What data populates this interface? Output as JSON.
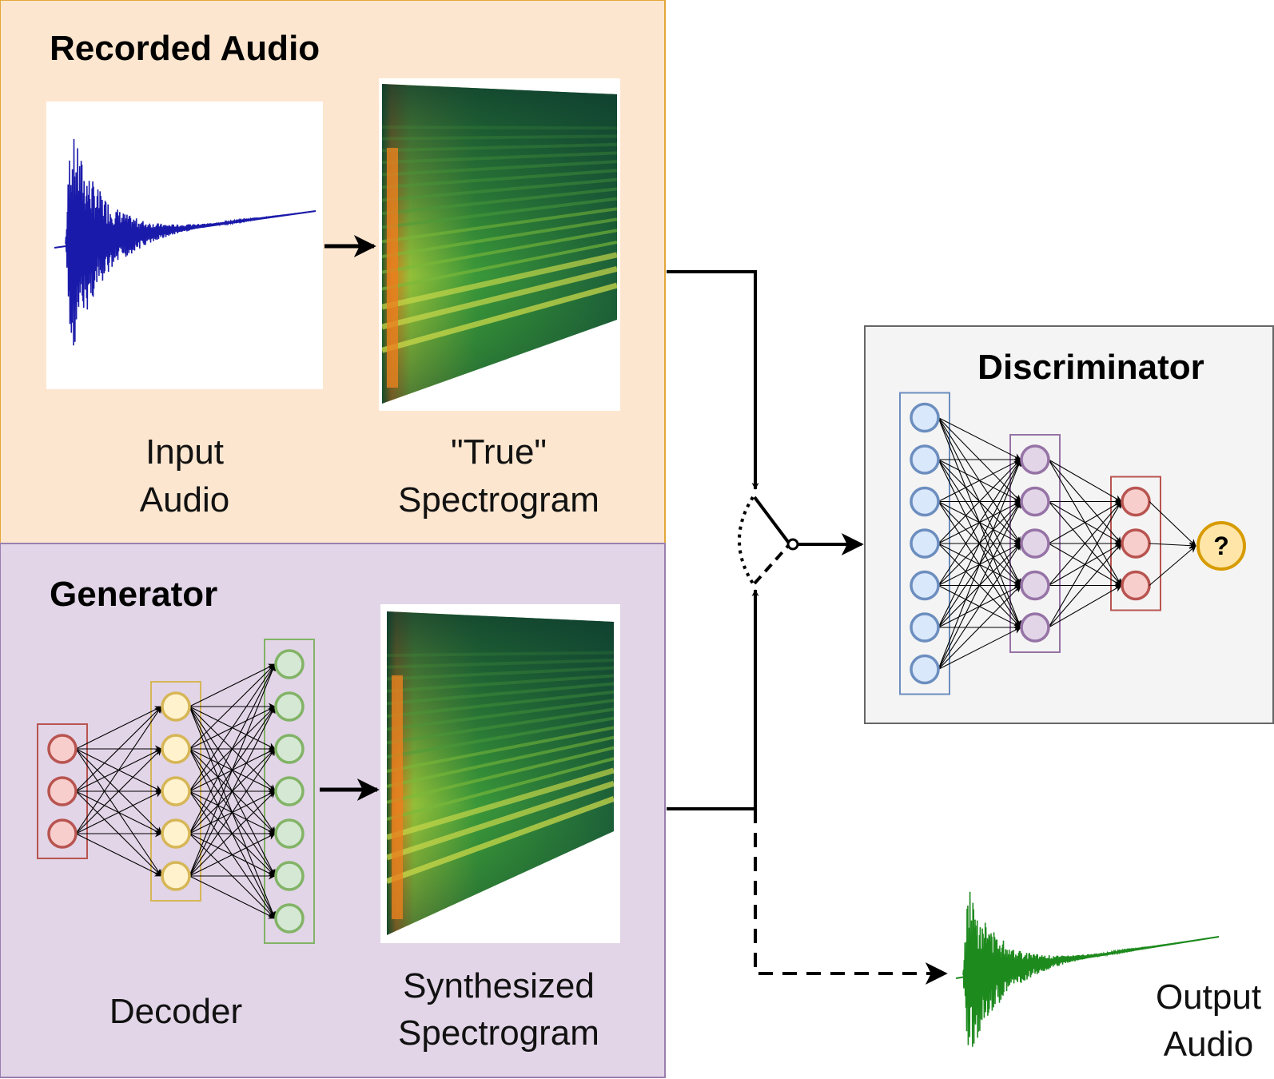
{
  "recorded_audio": {
    "title": "Recorded Audio",
    "input_label_line1": "Input",
    "input_label_line2": "Audio",
    "true_label_line1": "\"True\"",
    "true_label_line2": "Spectrogram"
  },
  "generator": {
    "title": "Generator",
    "decoder_label": "Decoder",
    "synth_label_line1": "Synthesized",
    "synth_label_line2": "Spectrogram",
    "layers": [
      3,
      5,
      7
    ]
  },
  "discriminator": {
    "title": "Discriminator",
    "output_symbol": "?",
    "layers": [
      7,
      5,
      3
    ]
  },
  "output_audio": {
    "label_line1": "Output",
    "label_line2": "Audio"
  },
  "colors": {
    "recorded_bg": "#fde6cf",
    "recorded_border": "#e2a73a",
    "generator_bg": "#e2d5e7",
    "generator_border": "#9a7fb0",
    "discriminator_bg": "#f4f4f4",
    "discriminator_border": "#666666",
    "node_red_fill": "#f8cecc",
    "node_red_stroke": "#b85450",
    "node_yellow_fill": "#fff2cc",
    "node_yellow_stroke": "#d6b656",
    "node_green_fill": "#d5e8d4",
    "node_green_stroke": "#82b366",
    "node_blue_fill": "#dae8fc",
    "node_blue_stroke": "#6c8ebf",
    "node_purple_fill": "#e1d5e7",
    "node_purple_stroke": "#9673a6",
    "waveform_blue": "#1a1aaa",
    "waveform_green": "#1d8a1d",
    "output_node_stroke": "#d79b00"
  }
}
